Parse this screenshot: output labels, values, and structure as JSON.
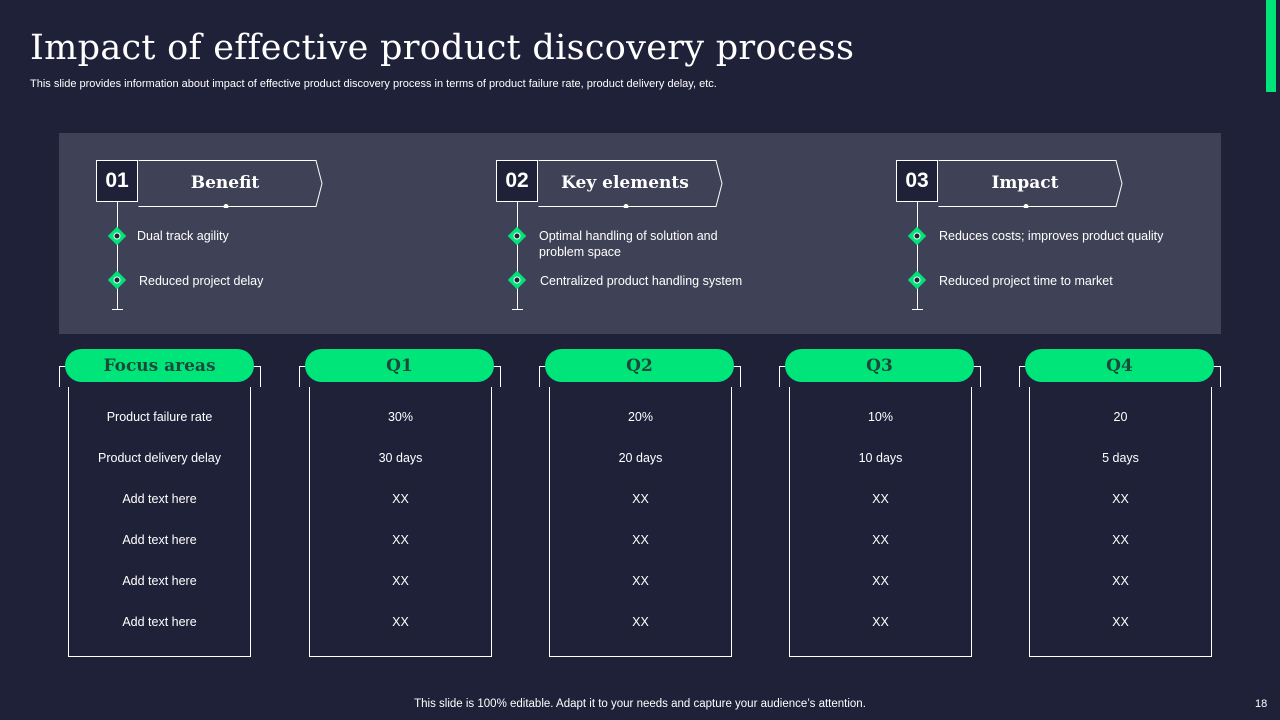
{
  "slide": {
    "title": "Impact of effective product discovery process",
    "subtitle": "This slide provides information about impact of effective product discovery process in terms of product failure rate, product delivery delay, etc.",
    "footer": "This slide is 100% editable. Adapt it to your needs and capture your audience’s attention.",
    "page_number": "18",
    "accent_color": "#00e57a",
    "background_color": "#1f2139",
    "panel_color": "#3f4256"
  },
  "cards": [
    {
      "number": "01",
      "label": "Benefit",
      "items": [
        "Dual track agility",
        "Reduced project delay"
      ]
    },
    {
      "number": "02",
      "label": "Key elements",
      "items": [
        "Optimal handling of solution and problem space",
        "Centralized product handling system"
      ]
    },
    {
      "number": "03",
      "label": "Impact",
      "items": [
        "Reduces costs; improves product quality",
        "Reduced project time to market"
      ]
    }
  ],
  "table": {
    "columns": [
      {
        "header": "Focus areas",
        "cells": [
          "Product failure rate",
          "Product delivery delay",
          "Add text here",
          "Add text here",
          "Add text here",
          "Add text here"
        ]
      },
      {
        "header": "Q1",
        "cells": [
          "30%",
          "30 days",
          "XX",
          "XX",
          "XX",
          "XX"
        ]
      },
      {
        "header": "Q2",
        "cells": [
          "20%",
          "20 days",
          "XX",
          "XX",
          "XX",
          "XX"
        ]
      },
      {
        "header": "Q3",
        "cells": [
          "10%",
          "10 days",
          "XX",
          "XX",
          "XX",
          "XX"
        ]
      },
      {
        "header": "Q4",
        "cells": [
          "20",
          "5 days",
          "XX",
          "XX",
          "XX",
          "XX"
        ]
      }
    ]
  }
}
